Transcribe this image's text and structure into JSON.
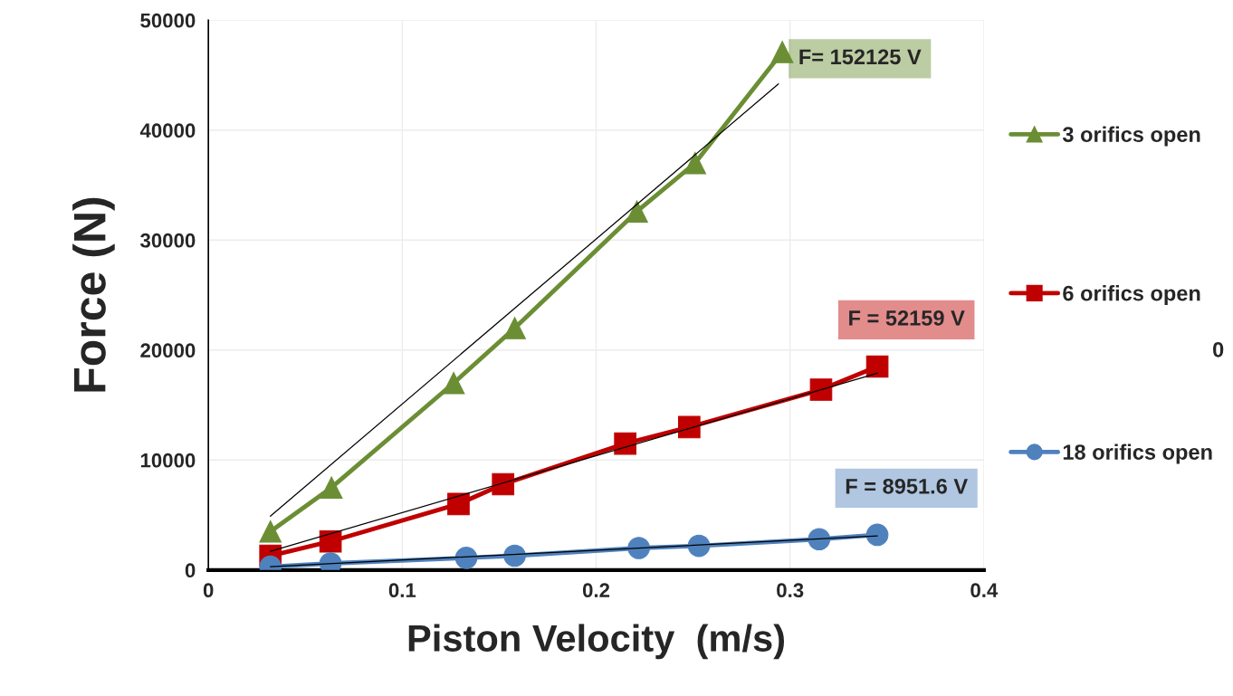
{
  "chart_data": {
    "type": "line",
    "xlabel": "Piston Velocity  (m/s)",
    "ylabel": "Force (N)",
    "xlim": [
      0,
      0.4
    ],
    "xticks": [
      0,
      0.1,
      0.2,
      0.3,
      0.4
    ],
    "ylim": [
      0,
      50000
    ],
    "yticks": [
      0,
      10000,
      20000,
      30000,
      40000,
      50000
    ],
    "grid": true,
    "legend": "right",
    "series": [
      {
        "name": "3 orifics open",
        "color": "#6b8e34",
        "marker": "triangle",
        "x": [
          0.032,
          0.0635,
          0.1265,
          0.158,
          0.221,
          0.251,
          0.296
        ],
        "values": [
          3500,
          7500,
          17000,
          22000,
          32600,
          37000,
          47100
        ]
      },
      {
        "name": "6 orifics open",
        "color": "#c00000",
        "marker": "square",
        "x": [
          0.032,
          0.063,
          0.129,
          0.152,
          0.215,
          0.248,
          0.316,
          0.345
        ],
        "values": [
          1300,
          2600,
          6000,
          7800,
          11500,
          13000,
          16400,
          18500
        ]
      },
      {
        "name": "18 orifics open",
        "color": "#4f81bd",
        "marker": "circle",
        "x": [
          0.032,
          0.063,
          0.133,
          0.158,
          0.222,
          0.253,
          0.315,
          0.345
        ],
        "values": [
          300,
          600,
          1100,
          1300,
          2000,
          2200,
          2800,
          3200
        ]
      },
      {
        "type": "line",
        "color": "#000000",
        "marker": "none",
        "x": [
          0.032,
          0.294
        ],
        "values": [
          4900,
          44200
        ]
      },
      {
        "type": "line",
        "color": "#000000",
        "marker": "none",
        "x": [
          0.032,
          0.345
        ],
        "values": [
          1700,
          17900
        ]
      },
      {
        "type": "line",
        "color": "#000000",
        "marker": "none",
        "x": [
          0.032,
          0.345
        ],
        "values": [
          300,
          3100
        ]
      }
    ],
    "annotations": [
      "F= 152125 V",
      "F = 52159 V",
      "F = 8951.6 V",
      "0"
    ]
  }
}
